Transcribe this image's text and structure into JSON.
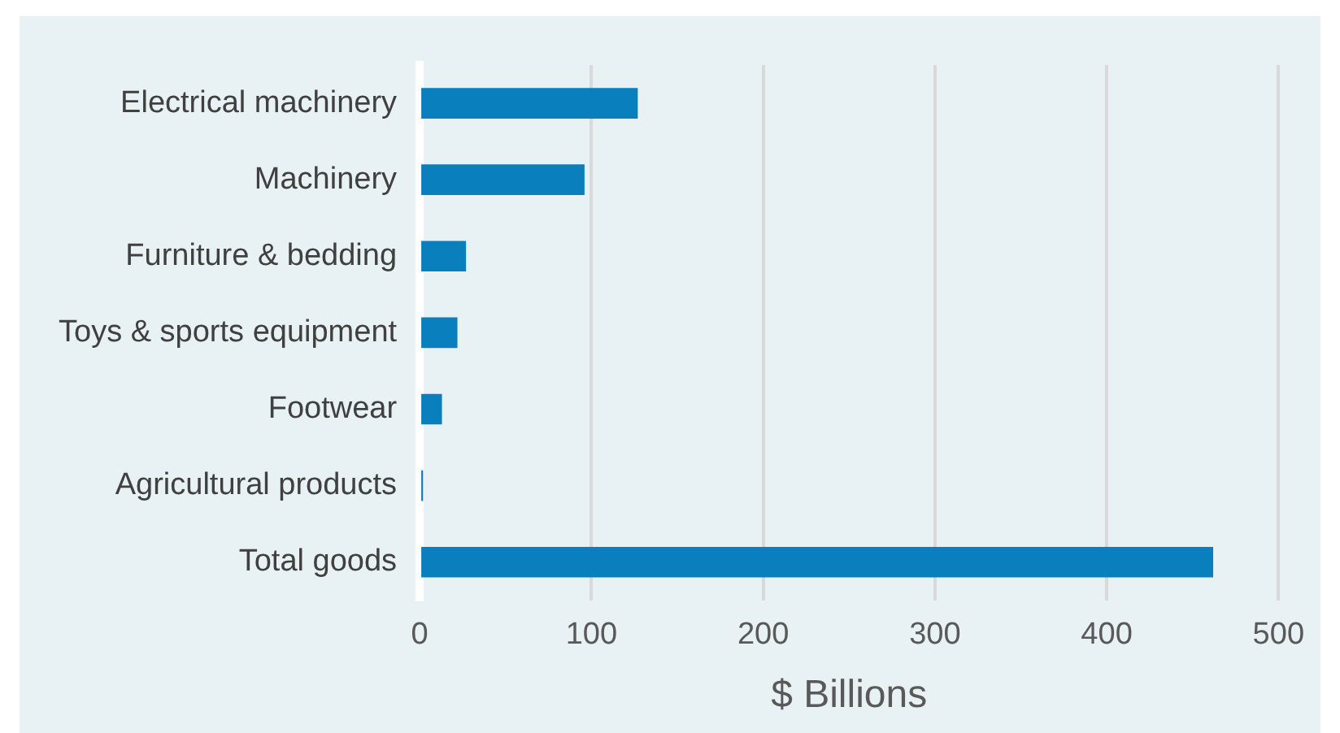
{
  "chart_data": {
    "type": "bar",
    "orientation": "horizontal",
    "xlabel": "$ Billions",
    "categories": [
      "Electrical machinery",
      "Machinery",
      "Furniture & bedding",
      "Toys & sports equipment",
      "Footwear",
      "Agricultural products",
      "Total goods"
    ],
    "values": [
      127,
      96,
      27,
      22,
      13,
      2,
      462
    ],
    "color": "#0a7fbd",
    "xlim": [
      0,
      500
    ],
    "xticks": [
      0,
      100,
      200,
      300,
      400,
      500
    ],
    "grid": "x",
    "legend": false
  }
}
